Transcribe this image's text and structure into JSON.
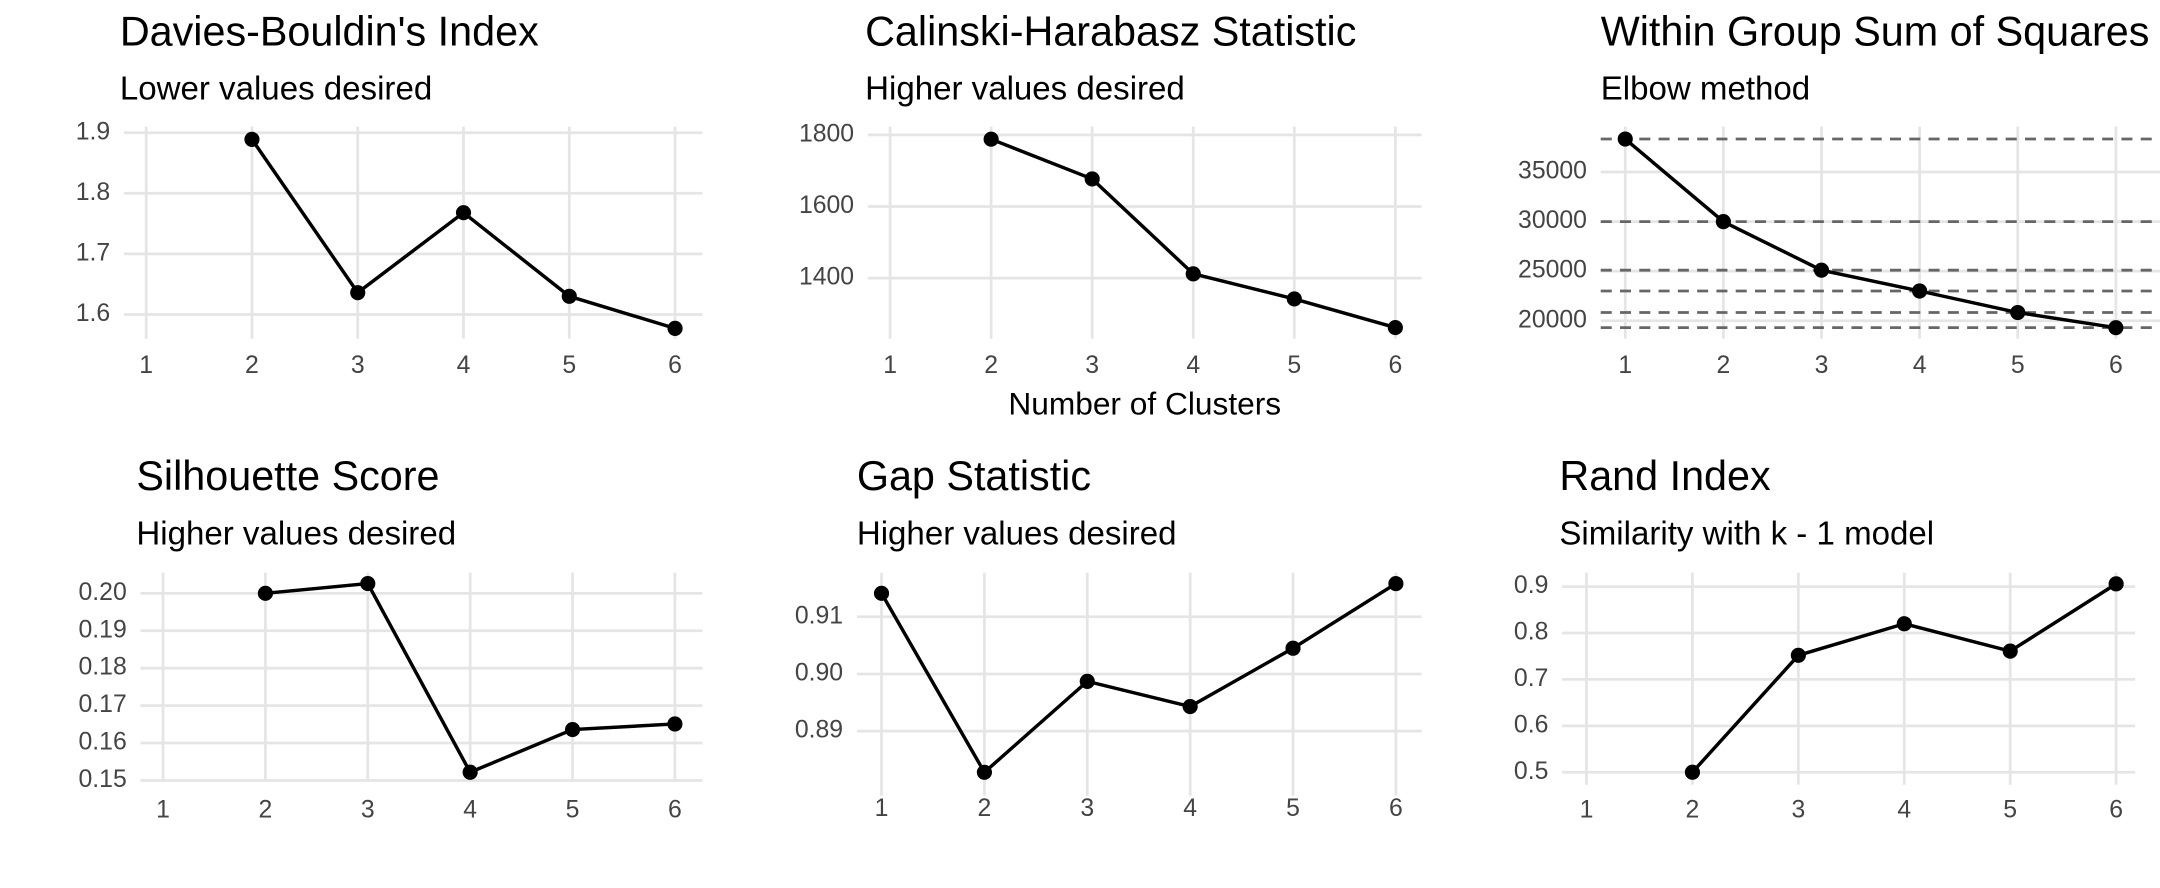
{
  "chart_data": [
    {
      "type": "line",
      "title": "Davies-Bouldin's Index",
      "subtitle": "Lower values desired",
      "x": [
        1,
        2,
        3,
        4,
        5,
        6
      ],
      "values": [
        null,
        1.889,
        1.636,
        1.768,
        1.63,
        1.577
      ],
      "color": "#000000",
      "xlim": [
        0.79,
        6.26
      ],
      "ylim": [
        1.56,
        1.91
      ],
      "xticks": [
        1,
        2,
        3,
        4,
        5,
        6
      ],
      "yticks": [
        1.6,
        1.7,
        1.8,
        1.9
      ],
      "grid": true
    },
    {
      "type": "line",
      "title": "Calinski-Harabasz Statistic",
      "subtitle": "Higher values desired",
      "xlabel": "Number of Clusters",
      "x": [
        1,
        2,
        3,
        4,
        5,
        6
      ],
      "values": [
        null,
        1788,
        1677,
        1412,
        1342,
        1262
      ],
      "color": "#000000",
      "xlim": [
        0.78,
        6.26
      ],
      "ylim": [
        1231,
        1823
      ],
      "xticks": [
        1,
        2,
        3,
        4,
        5,
        6
      ],
      "yticks": [
        1400,
        1600,
        1800
      ],
      "grid": true
    },
    {
      "type": "line",
      "title": "Within Group Sum of Squares",
      "subtitle": "Elbow method",
      "x": [
        1,
        2,
        3,
        4,
        5,
        6
      ],
      "values": [
        38333,
        30000,
        25100,
        23000,
        20830,
        19300
      ],
      "color": "#000000",
      "reference_lines": true,
      "reference_color": "#666666",
      "xlim": [
        0.75,
        6.45
      ],
      "ylim": [
        18190,
        39580
      ],
      "xticks": [
        1,
        2,
        3,
        4,
        5,
        6
      ],
      "yticks": [
        20000,
        25000,
        30000,
        35000
      ],
      "grid": true
    },
    {
      "type": "line",
      "title": "Silhouette Score",
      "subtitle": "Higher values desired",
      "x": [
        1,
        2,
        3,
        4,
        5,
        6
      ],
      "values": [
        null,
        0.2,
        0.2026,
        0.1522,
        0.1636,
        0.1651
      ],
      "color": "#000000",
      "xlim": [
        0.78,
        6.27
      ],
      "ylim": [
        0.1496,
        0.2055
      ],
      "xticks": [
        1,
        2,
        3,
        4,
        5,
        6
      ],
      "yticks": [
        {
          "value": 0.15,
          "label": "0.15"
        },
        0.16,
        0.17,
        0.18,
        0.19,
        {
          "value": 0.2,
          "label": "0.20"
        }
      ],
      "grid": true
    },
    {
      "type": "line",
      "title": "Gap Statistic",
      "subtitle": "Higher values desired",
      "x": [
        1,
        2,
        3,
        4,
        5,
        6
      ],
      "values": [
        0.9141,
        0.8828,
        0.8987,
        0.8943,
        0.9045,
        0.9158
      ],
      "color": "#000000",
      "xlim": [
        0.76,
        6.25
      ],
      "ylim": [
        0.8787,
        0.9177
      ],
      "xticks": [
        1,
        2,
        3,
        4,
        5,
        6
      ],
      "yticks": [
        0.89,
        {
          "value": 0.9,
          "label": "0.90"
        },
        0.91
      ],
      "grid": true
    },
    {
      "type": "line",
      "title": "Rand Index",
      "subtitle": "Similarity with k - 1 model",
      "x": [
        1,
        2,
        3,
        4,
        5,
        6
      ],
      "values": [
        null,
        0.5,
        0.752,
        0.82,
        0.761,
        0.906
      ],
      "color": "#000000",
      "xlim": [
        0.77,
        6.18
      ],
      "ylim": [
        0.473,
        0.93
      ],
      "xticks": [
        1,
        2,
        3,
        4,
        5,
        6
      ],
      "yticks": [
        0.5,
        0.6,
        0.7,
        0.8,
        0.9
      ],
      "grid": true
    }
  ]
}
